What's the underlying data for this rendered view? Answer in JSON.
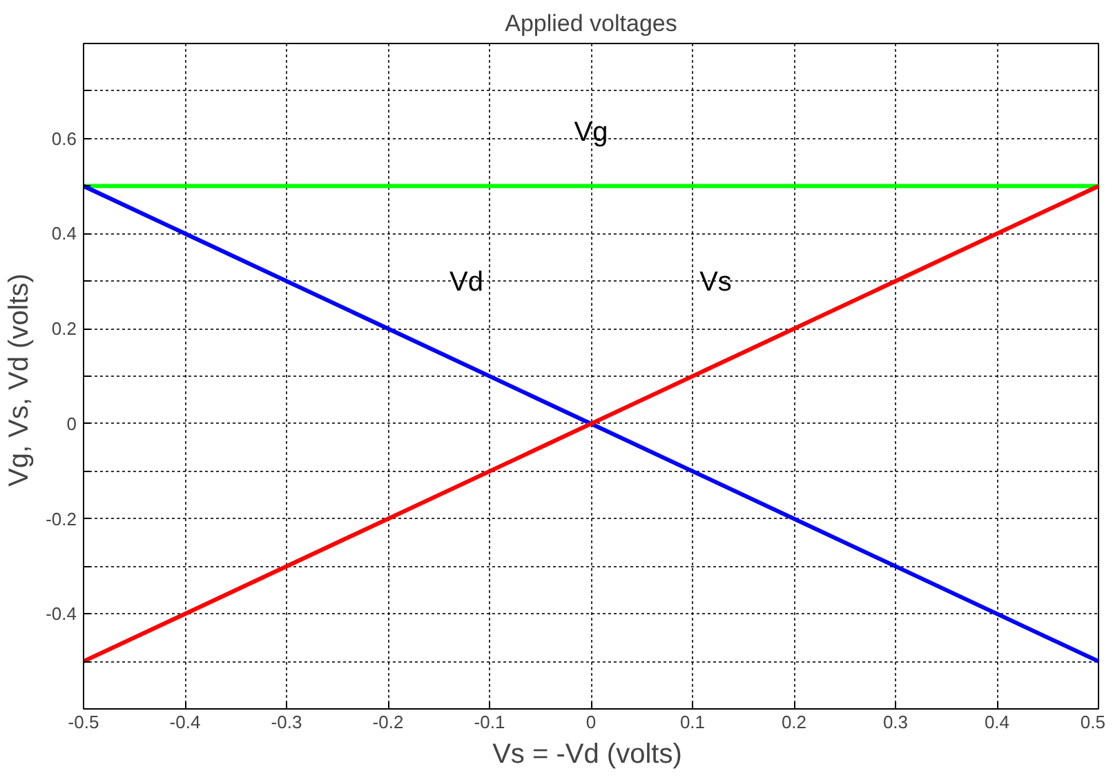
{
  "chart_data": {
    "type": "line",
    "title": "Applied voltages",
    "xlabel": "Vs = -Vd  (volts)",
    "ylabel": "Vg, Vs, Vd  (volts)",
    "x": [
      -0.5,
      0.5
    ],
    "series": [
      {
        "name": "Vg",
        "color": "#00ff00",
        "values": [
          0.5,
          0.5
        ]
      },
      {
        "name": "Vd",
        "color": "#0000ff",
        "values": [
          0.5,
          -0.5
        ]
      },
      {
        "name": "Vs",
        "color": "#ff0000",
        "values": [
          -0.5,
          0.5
        ]
      }
    ],
    "xlim": [
      -0.5,
      0.5
    ],
    "ylim": [
      -0.6,
      0.8
    ],
    "xticks": [
      -0.5,
      -0.4,
      -0.3,
      -0.2,
      -0.1,
      0,
      0.1,
      0.2,
      0.3,
      0.4,
      0.5
    ],
    "yticks": [
      {
        "value": -0.5,
        "label": null
      },
      -0.4,
      {
        "value": -0.3,
        "label": null
      },
      -0.2,
      {
        "value": -0.1,
        "label": null
      },
      0,
      {
        "value": 0.1,
        "label": null
      },
      0.2,
      {
        "value": 0.3,
        "label": null
      },
      0.4,
      {
        "value": 0.5,
        "label": null
      },
      0.6,
      {
        "value": 0.7,
        "label": null
      }
    ],
    "grid": true,
    "legend": false,
    "marker": "none",
    "line_style": "solid"
  }
}
